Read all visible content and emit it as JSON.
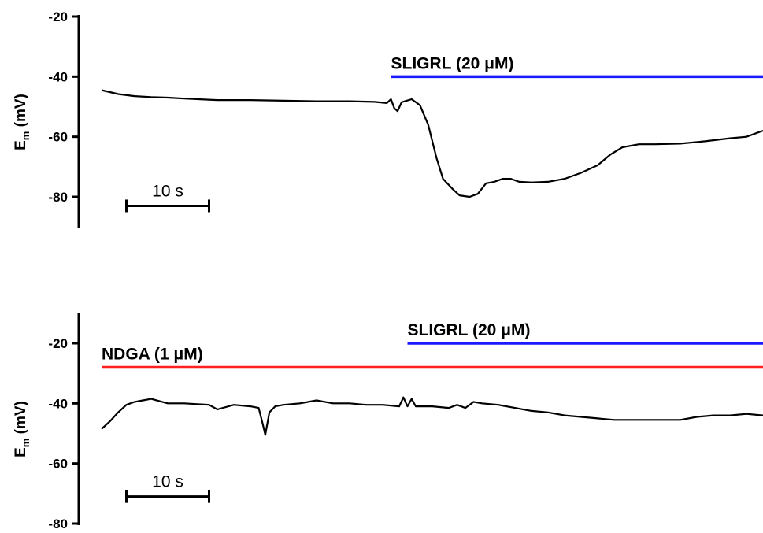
{
  "chart_data": [
    {
      "type": "line",
      "ylabel": "E",
      "ylabel_sub": "m",
      "ylabel_unit": " (mV)",
      "yticks": [
        -20,
        -40,
        -60,
        -80
      ],
      "ylim": [
        -90,
        -20
      ],
      "xlim": [
        0,
        80
      ],
      "scalebar": {
        "label": "10 s",
        "x_start": 3,
        "duration": 10,
        "y": -83
      },
      "applications": [
        {
          "label": "SLIGRL (20 μM)",
          "start": 35,
          "end": 80,
          "level": -40,
          "color": "#1a1aff"
        }
      ],
      "series": [
        {
          "x": [
            0,
            2,
            4,
            6,
            8,
            10,
            14,
            18,
            22,
            26,
            30,
            33,
            34.5,
            35,
            35.4,
            35.8,
            36.3,
            37.5,
            38.5,
            39.5,
            40.5,
            41.3,
            42.5,
            43.3,
            44.5,
            45.5,
            46.5,
            47.5,
            48.5,
            49.5,
            50.5,
            52,
            54,
            56,
            58,
            60,
            61.5,
            63,
            65,
            67,
            70,
            73,
            76,
            78,
            80
          ],
          "y": [
            -44.5,
            -45.8,
            -46.5,
            -46.8,
            -47,
            -47.3,
            -47.8,
            -47.8,
            -48,
            -48.2,
            -48.2,
            -48.4,
            -48.8,
            -47.5,
            -50.5,
            -51.5,
            -48.5,
            -47.5,
            -49.5,
            -56,
            -67,
            -74,
            -77.5,
            -79.5,
            -80,
            -79,
            -75.5,
            -75,
            -74,
            -74,
            -75,
            -75.2,
            -75,
            -74,
            -72,
            -69.5,
            -66,
            -63.5,
            -62.5,
            -62.5,
            -62.3,
            -61.5,
            -60.5,
            -60,
            -58
          ]
        }
      ]
    },
    {
      "type": "line",
      "ylabel": "E",
      "ylabel_sub": "m",
      "ylabel_unit": " (mV)",
      "yticks": [
        -20,
        -40,
        -60,
        -80
      ],
      "ylim": [
        -80,
        -10
      ],
      "xlim": [
        0,
        80
      ],
      "scalebar": {
        "label": "10 s",
        "x_start": 3,
        "duration": 10,
        "y": -71
      },
      "applications": [
        {
          "label": "SLIGRL (20 μM)",
          "start": 37,
          "end": 80,
          "level": -20,
          "color": "#1a1aff"
        },
        {
          "label": "NDGA (1 μM)",
          "start": 0,
          "end": 80,
          "level": -28,
          "color": "#ff2020"
        }
      ],
      "series": [
        {
          "x": [
            0,
            1,
            2,
            3,
            4,
            5,
            6,
            8,
            10,
            13,
            14,
            16,
            18,
            19,
            19.5,
            19.8,
            20.3,
            21,
            22,
            24,
            26,
            28,
            30,
            32,
            34,
            36,
            36.5,
            37,
            37.5,
            38,
            40,
            42,
            43,
            44,
            45,
            46,
            48,
            50,
            52,
            54,
            56,
            58,
            60,
            62,
            64,
            66,
            68,
            70,
            72,
            74,
            76,
            78,
            80
          ],
          "y": [
            -48.5,
            -46,
            -43,
            -40.5,
            -39.5,
            -39,
            -38.5,
            -40,
            -40,
            -40.5,
            -42,
            -40.5,
            -41,
            -41.5,
            -47,
            -50.5,
            -43,
            -41,
            -40.5,
            -40,
            -39,
            -40,
            -40,
            -40.5,
            -40.5,
            -41,
            -38,
            -41,
            -38.5,
            -41,
            -41,
            -41.5,
            -40.5,
            -41.5,
            -39.5,
            -40,
            -40.5,
            -41.5,
            -42.5,
            -43,
            -44,
            -44.5,
            -45,
            -45.5,
            -45.5,
            -45.5,
            -45.5,
            -45.5,
            -44.5,
            -44,
            -44,
            -43.5,
            -44
          ]
        }
      ]
    }
  ]
}
